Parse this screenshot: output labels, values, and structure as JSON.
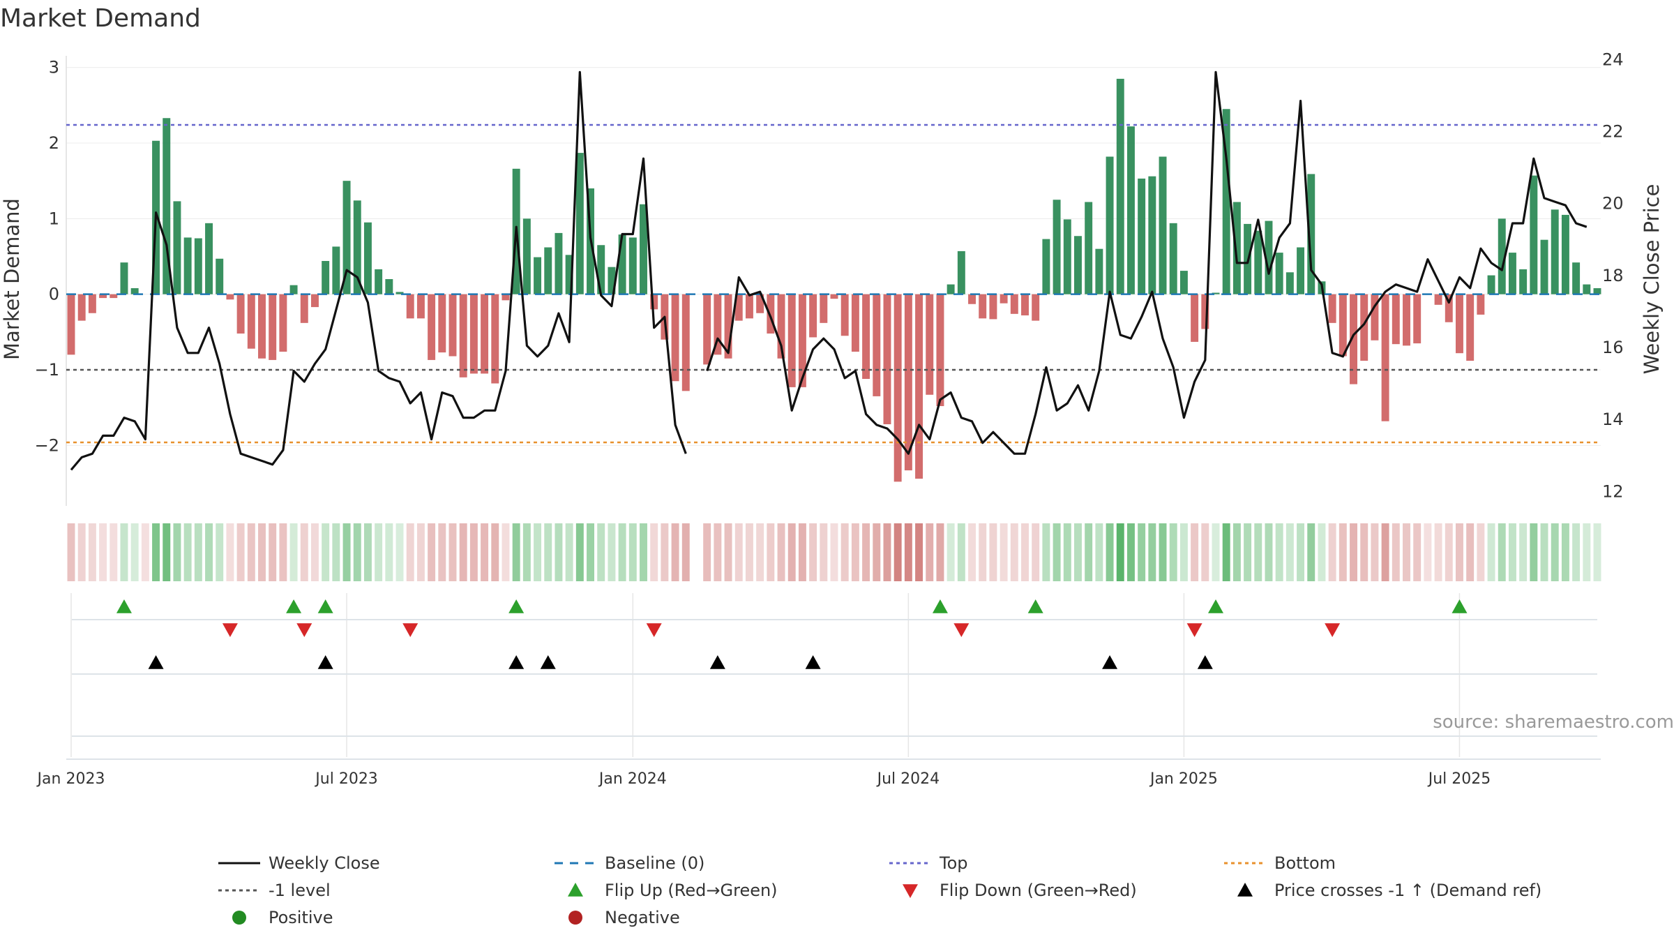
{
  "title": "Market Demand",
  "source": "source: sharemaestro.com",
  "colors": {
    "positive": "#2e8b57",
    "negative": "#cd5c5c",
    "line": "#111111",
    "top": "#6666cc",
    "bottom": "#e8912d",
    "minus1": "#555555",
    "baseline": "#1f77b4",
    "flip_up": "#2ca02c",
    "flip_down": "#d62728"
  },
  "chart_data": {
    "type": "bar",
    "title": "Market Demand",
    "ylabel": "Market Demand",
    "y2label": "Weekly Close Price",
    "ylim": [
      -2.8,
      3.2
    ],
    "y2lim": [
      11.6,
      24.2
    ],
    "yticks": [
      {
        "v": 3,
        "label": "3"
      },
      {
        "v": 2,
        "label": "2"
      },
      {
        "v": 1,
        "label": "1"
      },
      {
        "v": 0,
        "label": "0"
      },
      {
        "v": -1,
        "label": "−1"
      },
      {
        "v": -2,
        "label": "−2"
      }
    ],
    "y2ticks": [
      {
        "v": 24,
        "label": "24"
      },
      {
        "v": 22,
        "label": "22"
      },
      {
        "v": 20,
        "label": "20"
      },
      {
        "v": 18,
        "label": "18"
      },
      {
        "v": 16,
        "label": "16"
      },
      {
        "v": 14,
        "label": "14"
      },
      {
        "v": 12,
        "label": "12"
      }
    ],
    "xticks": [
      {
        "i": 0,
        "label": "Jan 2023"
      },
      {
        "i": 26,
        "label": "Jul 2023"
      },
      {
        "i": 53,
        "label": "Jan 2024"
      },
      {
        "i": 79,
        "label": "Jul 2024"
      },
      {
        "i": 105,
        "label": "Jan 2025"
      },
      {
        "i": 131,
        "label": "Jul 2025"
      }
    ],
    "demand": [
      -0.8,
      -0.35,
      -0.25,
      -0.05,
      -0.05,
      0.42,
      0.08,
      0.0,
      2.03,
      2.33,
      1.23,
      0.75,
      0.74,
      0.94,
      0.47,
      -0.07,
      -0.52,
      -0.72,
      -0.85,
      -0.87,
      -0.76,
      0.12,
      -0.38,
      -0.17,
      0.44,
      0.63,
      1.5,
      1.24,
      0.95,
      0.33,
      0.2,
      0.03,
      -0.32,
      -0.32,
      -0.87,
      -0.77,
      -0.82,
      -1.1,
      -1.05,
      -1.05,
      -1.18,
      -0.08,
      1.66,
      1.0,
      0.49,
      0.62,
      0.81,
      0.52,
      1.87,
      1.4,
      0.65,
      0.36,
      0.79,
      0.75,
      1.19,
      -0.2,
      -0.6,
      -1.15,
      -1.28,
      null,
      -0.93,
      -0.8,
      -0.85,
      -0.35,
      -0.32,
      -0.25,
      -0.52,
      -0.85,
      -1.23,
      -1.23,
      -0.57,
      -0.38,
      -0.06,
      -0.55,
      -0.76,
      -1.12,
      -1.35,
      -1.72,
      -2.48,
      -2.33,
      -2.44,
      -1.33,
      -1.48,
      0.13,
      0.57,
      -0.13,
      -0.32,
      -0.33,
      -0.12,
      -0.26,
      -0.28,
      -0.35,
      0.73,
      1.25,
      0.99,
      0.77,
      1.22,
      0.6,
      1.82,
      2.85,
      2.22,
      1.53,
      1.56,
      1.82,
      0.94,
      0.31,
      -0.63,
      -0.46,
      0.02,
      2.45,
      1.22,
      0.93,
      0.84,
      0.97,
      0.55,
      0.29,
      0.62,
      1.59,
      0.17,
      -0.38,
      -0.82,
      -1.19,
      -0.88,
      -0.61,
      -1.68,
      -0.66,
      -0.68,
      -0.65,
      0.0,
      -0.14,
      -0.37,
      -0.78,
      -0.88,
      -0.27,
      0.25,
      1.0,
      0.55,
      0.33,
      1.57,
      0.72,
      1.12,
      1.05,
      0.42,
      0.13,
      0.08
    ],
    "close": [
      12.6,
      12.95,
      13.05,
      13.55,
      13.55,
      14.05,
      13.95,
      13.45,
      19.75,
      18.85,
      16.55,
      15.85,
      15.85,
      16.55,
      15.55,
      14.15,
      13.05,
      12.95,
      12.85,
      12.75,
      13.15,
      15.35,
      15.05,
      15.55,
      15.95,
      17.05,
      18.15,
      17.95,
      17.25,
      15.35,
      15.15,
      15.05,
      14.45,
      14.75,
      13.45,
      14.75,
      14.65,
      14.05,
      14.05,
      14.25,
      14.25,
      15.35,
      19.35,
      16.05,
      15.75,
      16.05,
      16.95,
      16.15,
      23.65,
      19.05,
      17.45,
      17.15,
      19.15,
      19.15,
      21.25,
      16.55,
      16.85,
      13.85,
      13.05,
      null,
      15.35,
      16.25,
      15.85,
      17.95,
      17.45,
      17.55,
      16.85,
      16.05,
      14.25,
      15.15,
      15.95,
      16.25,
      15.95,
      15.15,
      15.35,
      14.15,
      13.85,
      13.75,
      13.45,
      13.05,
      13.85,
      13.45,
      14.55,
      14.75,
      14.05,
      13.95,
      13.35,
      13.65,
      13.35,
      13.05,
      13.05,
      14.15,
      15.45,
      14.25,
      14.45,
      14.95,
      14.25,
      15.35,
      17.55,
      16.35,
      16.25,
      16.85,
      17.55,
      16.25,
      15.45,
      14.05,
      15.05,
      15.65,
      23.65,
      21.25,
      18.35,
      18.35,
      19.55,
      18.05,
      19.05,
      19.45,
      22.85,
      18.15,
      17.75,
      15.85,
      15.75,
      16.35,
      16.65,
      17.15,
      17.55,
      17.75,
      17.65,
      17.55,
      18.45,
      17.85,
      17.25,
      17.95,
      17.65,
      18.75,
      18.35,
      18.15,
      19.45,
      19.45,
      21.25,
      20.15,
      20.05,
      19.95,
      19.45,
      19.35
    ],
    "top": 2.24,
    "bottom": -1.96,
    "minus1": -1.0,
    "flip_up": [
      5,
      21,
      24,
      42,
      82,
      91,
      108,
      131
    ],
    "flip_down": [
      15,
      22,
      32,
      55,
      84,
      106,
      119
    ],
    "price_cross": [
      8,
      24,
      42,
      45,
      61,
      70,
      98,
      107
    ],
    "legend": [
      "Weekly Close",
      "Baseline (0)",
      "Top",
      "Bottom",
      "-1 level",
      "Flip Up (Red→Green)",
      "Flip Down (Green→Red)",
      "Price crosses -1 ↑ (Demand ref)",
      "Positive",
      "Negative"
    ]
  }
}
